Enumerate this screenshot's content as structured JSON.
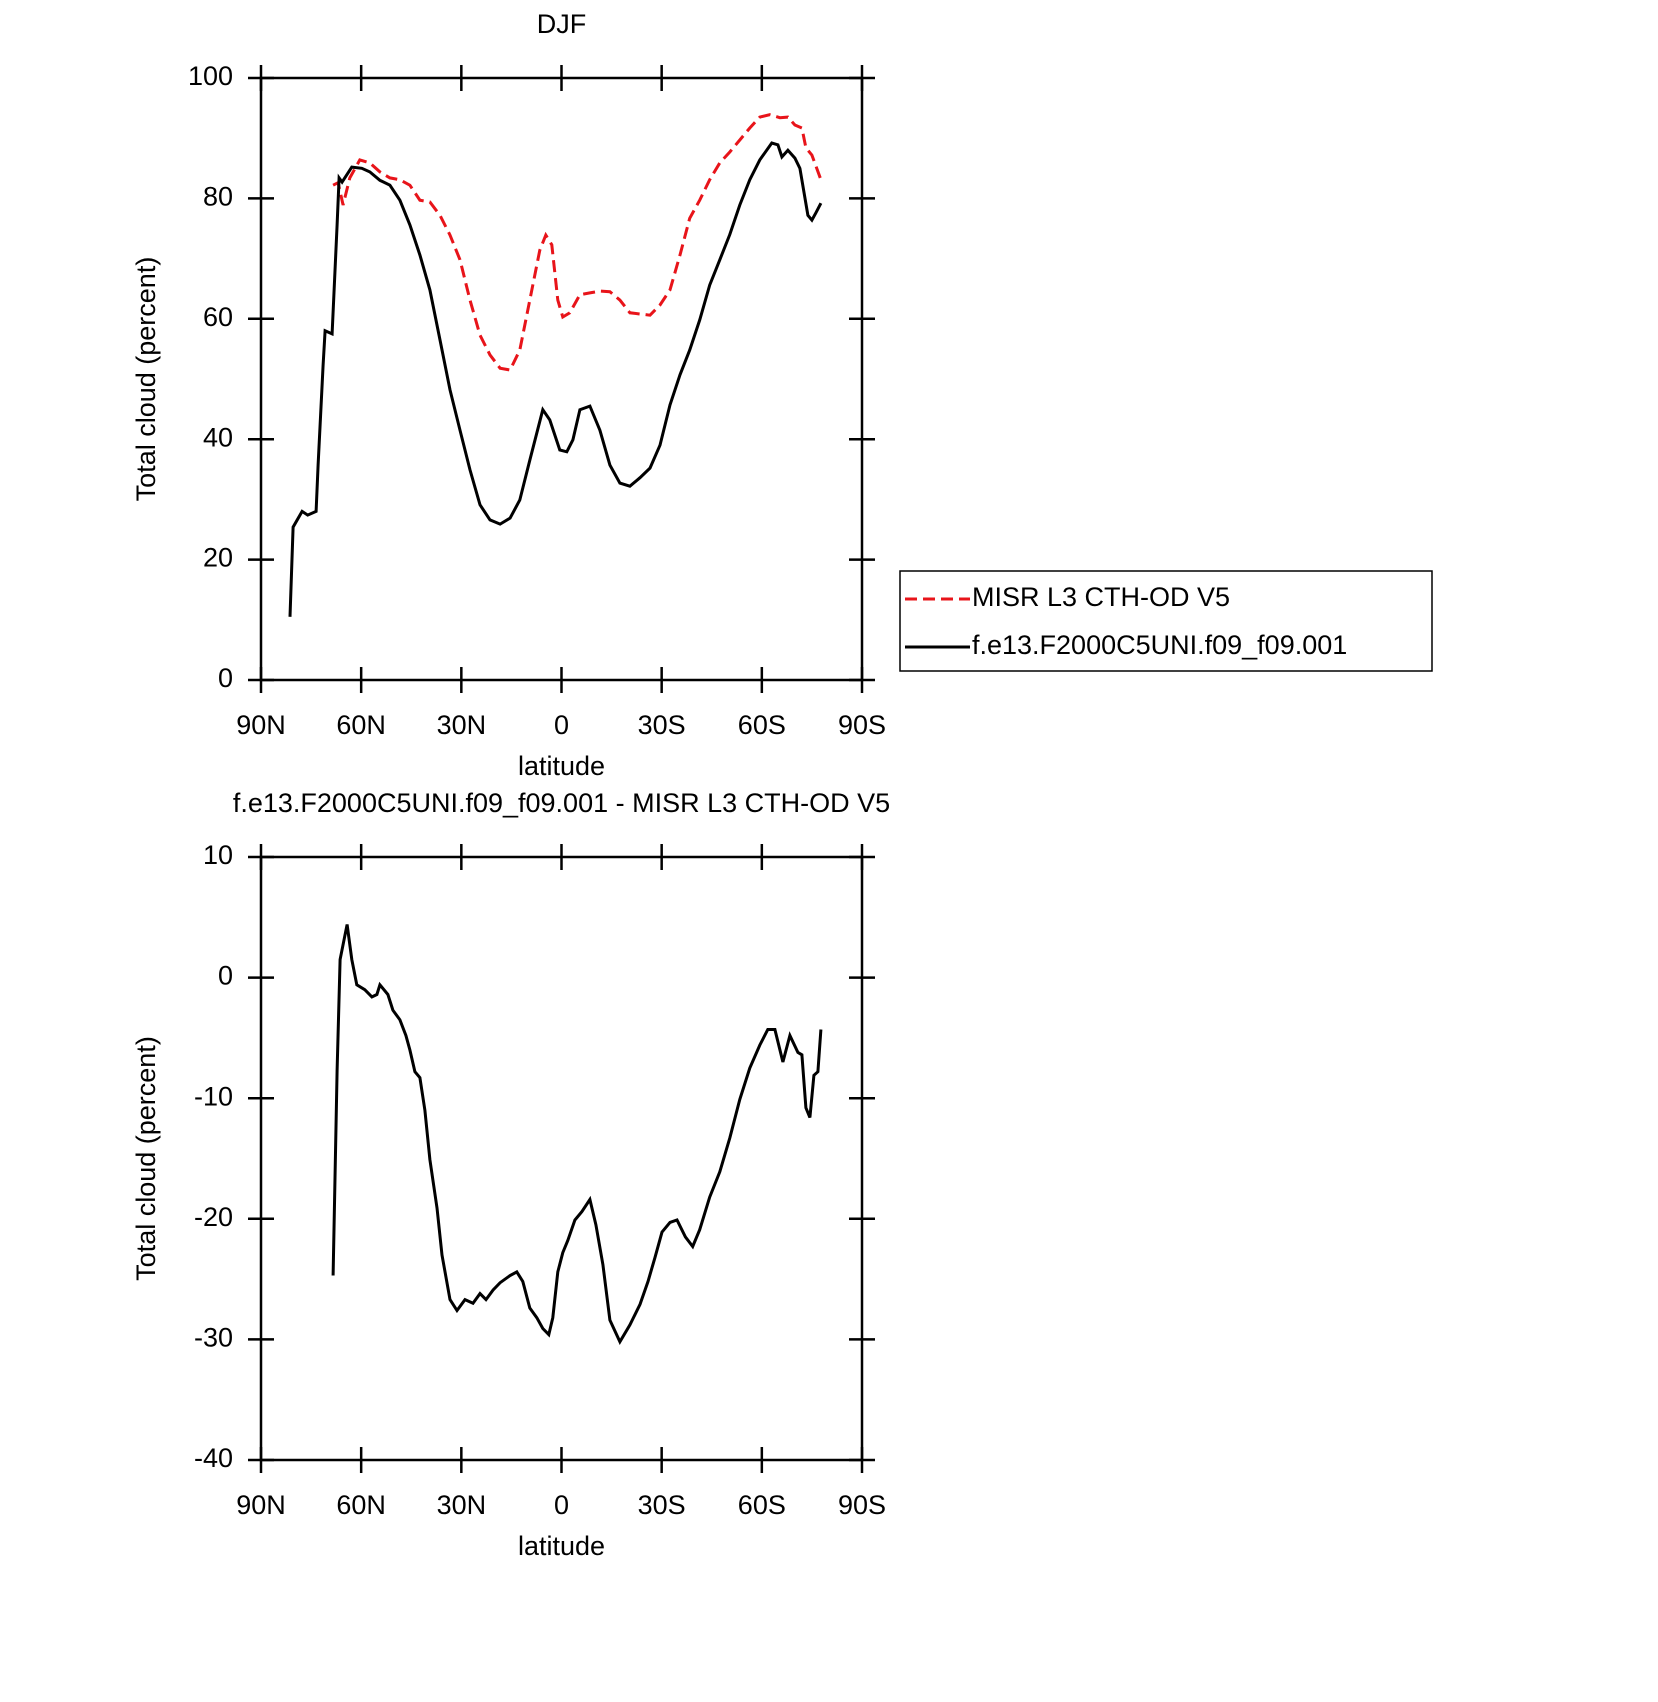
{
  "chart_data": [
    {
      "type": "line",
      "title": "DJF",
      "xlabel": "latitude",
      "ylabel": "Total cloud (percent)",
      "xlim": [
        90,
        -90
      ],
      "xticks": [
        {
          "value": 90,
          "label": "90N"
        },
        {
          "value": 60,
          "label": "60N"
        },
        {
          "value": 30,
          "label": "30N"
        },
        0,
        {
          "value": -30,
          "label": "30S"
        },
        {
          "value": -60,
          "label": "60S"
        },
        {
          "value": -90,
          "label": "90S"
        }
      ],
      "ylim": [
        0,
        100
      ],
      "yticks": [
        0,
        20,
        40,
        60,
        80,
        100
      ],
      "legend": "right",
      "series": [
        {
          "name": "MISR L3 CTH-OD V5",
          "color": "#e8141a",
          "linestyle": "dashed",
          "x": [
            68.4,
            66.9,
            65.4,
            63.4,
            60.4,
            57.4,
            54.4,
            51.4,
            48.4,
            45.4,
            42.4,
            39.4,
            36.4,
            33.4,
            30.4,
            27.4,
            24.4,
            21.4,
            18.4,
            15.4,
            12.5,
            9.5,
            6.5,
            4.7,
            2.9,
            1.1,
            -0.4,
            -2.5,
            -5.5,
            -8.5,
            -11.5,
            -14.5,
            -17.5,
            -20.5,
            -23.5,
            -26.5,
            -29.5,
            -32.5,
            -35.5,
            -38.4,
            -41.4,
            -44.4,
            -47.4,
            -50.4,
            -53.4,
            -56.4,
            -59.4,
            -62.4,
            -65.4,
            -67.8,
            -69.9,
            -72,
            -73.2,
            -75,
            -77.7
          ],
          "values": [
            82.2,
            82.6,
            78.9,
            83.4,
            86.4,
            85.9,
            84.4,
            83.4,
            83.1,
            82.2,
            79.7,
            79.4,
            77.2,
            73.9,
            69.8,
            63.1,
            57.3,
            54,
            51.8,
            51.5,
            54.8,
            63.1,
            71.4,
            73.9,
            72.3,
            63.1,
            60.3,
            61,
            64,
            64.3,
            64.6,
            64.5,
            63.1,
            61,
            60.8,
            60.6,
            62.3,
            64.8,
            70.6,
            76.7,
            79.7,
            83.1,
            85.9,
            87.7,
            89.7,
            91.7,
            93.5,
            93.9,
            93.4,
            93.5,
            92.2,
            91.7,
            88.4,
            87.2,
            83.1
          ]
        },
        {
          "name": "f.e13.F2000C5UNI.f09_f09.001",
          "color": "#000000",
          "linestyle": "solid",
          "x": [
            81.3,
            80.4,
            77.7,
            76,
            73.5,
            72.9,
            71.4,
            70.8,
            68.7,
            67.2,
            66.6,
            65.7,
            62.8,
            59.8,
            57.4,
            54.4,
            51.4,
            48.4,
            45.4,
            42.4,
            39.4,
            36.4,
            33.4,
            30.4,
            27.4,
            24.4,
            21.4,
            18.4,
            15.4,
            12.5,
            9.5,
            5.6,
            3.5,
            0.5,
            -1.6,
            -3.4,
            -5.5,
            -8.5,
            -11.5,
            -14.5,
            -17.5,
            -20.5,
            -23.5,
            -26.5,
            -29.5,
            -32.5,
            -35.5,
            -38.4,
            -41.4,
            -44.4,
            -47.4,
            -50.4,
            -53.4,
            -56.4,
            -59.4,
            -63,
            -64.8,
            -66,
            -67.8,
            -69.9,
            -71.4,
            -73.8,
            -75,
            -76.2,
            -77.7
          ],
          "values": [
            10.5,
            25.4,
            28,
            27.4,
            28,
            35.7,
            52.3,
            58,
            57.5,
            75.6,
            83.4,
            82.7,
            85.2,
            85,
            84.4,
            83,
            82.2,
            79.7,
            75.6,
            70.6,
            64.8,
            56.5,
            48.2,
            41.5,
            34.9,
            29.1,
            26.6,
            25.9,
            26.9,
            29.9,
            36.5,
            44.9,
            43.2,
            38.2,
            37.9,
            39.9,
            44.9,
            45.5,
            41.5,
            35.7,
            32.7,
            32.2,
            33.6,
            35.2,
            39,
            45.7,
            50.7,
            54.8,
            59.8,
            65.6,
            69.8,
            74,
            78.9,
            83.1,
            86.4,
            89.2,
            88.9,
            86.9,
            88,
            86.7,
            85,
            77.2,
            76.4,
            77.6,
            79.2
          ]
        }
      ]
    },
    {
      "type": "line",
      "title": "f.e13.F2000C5UNI.f09_f09.001 - MISR L3 CTH-OD V5",
      "xlabel": "latitude",
      "ylabel": "Total cloud (percent)",
      "xlim": [
        90,
        -90
      ],
      "xticks": [
        {
          "value": 90,
          "label": "90N"
        },
        {
          "value": 60,
          "label": "60N"
        },
        {
          "value": 30,
          "label": "30N"
        },
        0,
        {
          "value": -30,
          "label": "30S"
        },
        {
          "value": -60,
          "label": "60S"
        },
        {
          "value": -90,
          "label": "90S"
        }
      ],
      "ylim": [
        -40,
        10
      ],
      "yticks": [
        -40,
        -30,
        -20,
        -10,
        0,
        10
      ],
      "color": "#000000",
      "x": [
        68.4,
        67.2,
        66.3,
        64.2,
        62.8,
        61.3,
        58.9,
        56.8,
        55.3,
        54.4,
        52,
        50.5,
        48.4,
        46.6,
        45.4,
        43.9,
        42.4,
        40.9,
        39.4,
        37.3,
        35.8,
        33.4,
        31.3,
        28.9,
        26.5,
        24.4,
        22.6,
        20.5,
        18.4,
        15.4,
        13.4,
        11.6,
        9.5,
        7.4,
        5.6,
        3.8,
        2.6,
        1.1,
        -0.4,
        -1.9,
        -4,
        -6.1,
        -8.5,
        -10.3,
        -12.4,
        -14.5,
        -17.5,
        -20.5,
        -23.5,
        -25.9,
        -28,
        -30.1,
        -32.5,
        -34.6,
        -37.1,
        -39.3,
        -41.4,
        -44.4,
        -47.4,
        -50.4,
        -53.4,
        -56.4,
        -59.4,
        -61.8,
        -63.9,
        -66.3,
        -68.4,
        -70.8,
        -72,
        -73.2,
        -74.4,
        -75.6,
        -76.8,
        -77.7
      ],
      "values": [
        -24.7,
        -7.7,
        1.5,
        4.4,
        1.5,
        -0.6,
        -1,
        -1.6,
        -1.4,
        -0.6,
        -1.4,
        -2.7,
        -3.5,
        -4.8,
        -6,
        -7.8,
        -8.3,
        -11,
        -15.1,
        -19.1,
        -23,
        -26.7,
        -27.6,
        -26.7,
        -27,
        -26.2,
        -26.7,
        -25.9,
        -25.3,
        -24.7,
        -24.4,
        -25.2,
        -27.4,
        -28.2,
        -29.1,
        -29.6,
        -28.2,
        -24.4,
        -22.8,
        -21.8,
        -20.1,
        -19.4,
        -18.4,
        -20.5,
        -23.8,
        -28.4,
        -30.2,
        -28.8,
        -27.1,
        -25.2,
        -23.2,
        -21.1,
        -20.3,
        -20.1,
        -21.5,
        -22.3,
        -20.9,
        -18.2,
        -16.1,
        -13.3,
        -10.1,
        -7.5,
        -5.6,
        -4.3,
        -4.3,
        -7,
        -4.8,
        -6.2,
        -6.4,
        -10.8,
        -11.6,
        -8.1,
        -7.8,
        -4.3
      ]
    }
  ]
}
